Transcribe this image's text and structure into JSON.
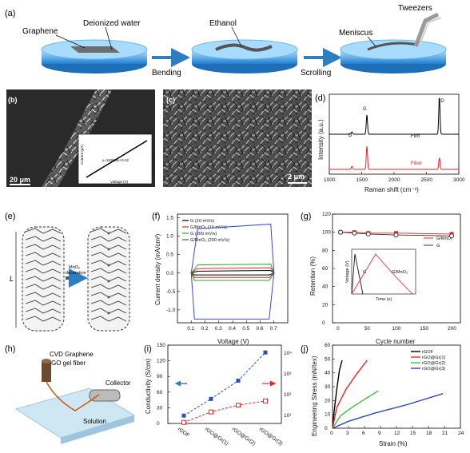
{
  "panels": {
    "a": {
      "label": "(a)",
      "text": {
        "graphene": "Graphene",
        "water": "Deionized water",
        "ethanol": "Ethanol",
        "tweezers": "Tweezers",
        "meniscus": "Meniscus",
        "bending": "Bending",
        "scrolling": "Scrolling"
      }
    },
    "b": {
      "label": "(b)",
      "scale": "20 μm",
      "inset": {
        "equation": "y=110k34x+0.22",
        "xlabel": "Voltage (V)",
        "ylabel": "Current (μA)",
        "xticks": [
          "-0.4",
          "-0.2",
          "0.0",
          "0.2",
          "0.4"
        ]
      }
    },
    "c": {
      "label": "(c)",
      "scale": "2 μm"
    },
    "d": {
      "label": "(d)",
      "ylabel": "Intensity (a.u.)",
      "xlabel": "Raman shift (cm⁻¹)",
      "xticks": [
        "1000",
        "1500",
        "2000",
        "2500",
        "3000"
      ],
      "peaks": [
        "D",
        "G",
        "2D"
      ],
      "film": "Film",
      "fiber": "Fiber"
    },
    "e": {
      "label": "(e)",
      "length": "L",
      "arrow_text_1": "MnO₂",
      "arrow_text_2": "decoration"
    },
    "f": {
      "label": "(f)",
      "ylabel": "Current density (mA/cm²)",
      "xlabel": "Voltage (V)"
    },
    "g": {
      "label": "(g)",
      "ylabel": "Retention (%)",
      "xlabel": "Cycle number"
    },
    "h": {
      "label": "(h)",
      "cvd": "CVD Graphene",
      "go": "GO gel fiber",
      "collector": "Collector",
      "solution": "Solution"
    },
    "i": {
      "label": "(i)",
      "ylabel": "Conductivity (S/cm)"
    },
    "j": {
      "label": "(j)",
      "ylabel": "Engineering Stress (mN/tex)",
      "xlabel": "Strain (%)"
    }
  },
  "chart_data": [
    {
      "panel": "d",
      "type": "line",
      "xlabel": "Raman shift (cm⁻¹)",
      "ylabel": "Intensity (a.u.)",
      "xlim": [
        1000,
        3000
      ],
      "series": [
        {
          "name": "Film",
          "color": "#000000",
          "peaks": [
            [
              1350,
              0.06
            ],
            [
              1580,
              0.5
            ],
            [
              2700,
              0.95
            ]
          ]
        },
        {
          "name": "Fiber",
          "color": "#e8262a",
          "peaks": [
            [
              1350,
              0.08
            ],
            [
              1580,
              0.6
            ],
            [
              2700,
              0.3
            ]
          ]
        }
      ]
    },
    {
      "panel": "f",
      "type": "line",
      "xlabel": "Voltage (V)",
      "ylabel": "Current density (mA/cm²)",
      "xlim": [
        0.0,
        0.8
      ],
      "xticks": [
        0.1,
        0.2,
        0.3,
        0.4,
        0.5,
        0.6,
        0.7
      ],
      "ylim": [
        -1.35,
        1.6
      ],
      "yticks": [
        -1.0,
        -0.5,
        0.0,
        0.5,
        1.0,
        1.5
      ],
      "series": [
        {
          "name": "G (10 mV/s)",
          "color": "#000000",
          "upper": 0.05,
          "lower": -0.05
        },
        {
          "name": "G/MnO₂ (10 mV/s)",
          "color": "#e8262a",
          "upper": 0.12,
          "lower": -0.12
        },
        {
          "name": "G (200 mV/s)",
          "color": "#2ca02c",
          "upper": 0.22,
          "lower": -0.2
        },
        {
          "name": "G/MnO₂ (200 mV/s)",
          "color": "#3b4cc0",
          "upper": 1.2,
          "lower": -1.25
        }
      ]
    },
    {
      "panel": "g",
      "type": "line",
      "xlabel": "Cycle number",
      "ylabel": "Retention (%)",
      "xticks": [
        0,
        50,
        100,
        150,
        200
      ],
      "ylim": [
        0,
        120
      ],
      "yticks": [
        0,
        20,
        40,
        60,
        80,
        100,
        120
      ],
      "series": [
        {
          "name": "G/MnO₂",
          "color": "#e8262a",
          "x": [
            0,
            25,
            50,
            100,
            200
          ],
          "y": [
            100,
            100,
            99,
            99,
            98
          ]
        },
        {
          "name": "G",
          "color": "#333333",
          "x": [
            0,
            25,
            50,
            100,
            200
          ],
          "y": [
            100,
            99,
            98,
            97,
            96
          ]
        }
      ],
      "inset": {
        "xlabel": "Time (s)",
        "ylabel": "Voltage (V)",
        "xticks": [
          0,
          20,
          40,
          60,
          80,
          100
        ],
        "yticks": [
          0.0,
          0.1,
          0.2,
          0.3,
          0.4,
          0.5,
          0.6,
          0.7
        ],
        "labels": [
          "G",
          "G/MnO₂"
        ]
      }
    },
    {
      "panel": "i",
      "type": "line",
      "ylabel": "Conductivity (S/cm)",
      "categories": [
        "rGOF",
        "rGO@Gr(1)",
        "rGO@Gr(2)",
        "rGO@Gr(3)"
      ],
      "ylim": [
        0,
        150
      ],
      "yticks": [
        0,
        30,
        60,
        90,
        120,
        150
      ],
      "right_ticks": [
        "10¹",
        "10²",
        "10³",
        "10⁴"
      ],
      "series": [
        {
          "name": "left",
          "color": "#2f4fb5",
          "values": [
            15,
            47,
            82,
            136
          ]
        },
        {
          "name": "right",
          "color": "#e8262a",
          "values": [
            2,
            22,
            35,
            43
          ]
        }
      ]
    },
    {
      "panel": "j",
      "type": "line",
      "xlabel": "Strain (%)",
      "ylabel": "Engineering Stress (mN/tex)",
      "xlim": [
        0,
        24
      ],
      "xticks": [
        0,
        3,
        6,
        9,
        12,
        15,
        18,
        21,
        24
      ],
      "ylim": [
        0,
        60
      ],
      "yticks": [
        0,
        10,
        20,
        30,
        40,
        50,
        60
      ],
      "series": [
        {
          "name": "rGOF",
          "color": "#000000",
          "x": [
            0,
            0.3,
            0.8,
            1.3,
            1.8
          ],
          "y": [
            0,
            12,
            28,
            42,
            49
          ]
        },
        {
          "name": "rGO@Gr(1)",
          "color": "#e8262a",
          "x": [
            0,
            0.8,
            2.5,
            4.5,
            6.5
          ],
          "y": [
            0,
            15,
            28,
            39,
            49
          ]
        },
        {
          "name": "rGO@Gr(2)",
          "color": "#4cb848",
          "x": [
            0,
            1.5,
            4,
            6.5,
            8.6
          ],
          "y": [
            0,
            9,
            16,
            22,
            27
          ]
        },
        {
          "name": "rGO@Gr(3)",
          "color": "#3148a8",
          "x": [
            0,
            3,
            8,
            14,
            20.7
          ],
          "y": [
            0,
            5,
            11,
            17,
            25
          ]
        }
      ]
    }
  ]
}
